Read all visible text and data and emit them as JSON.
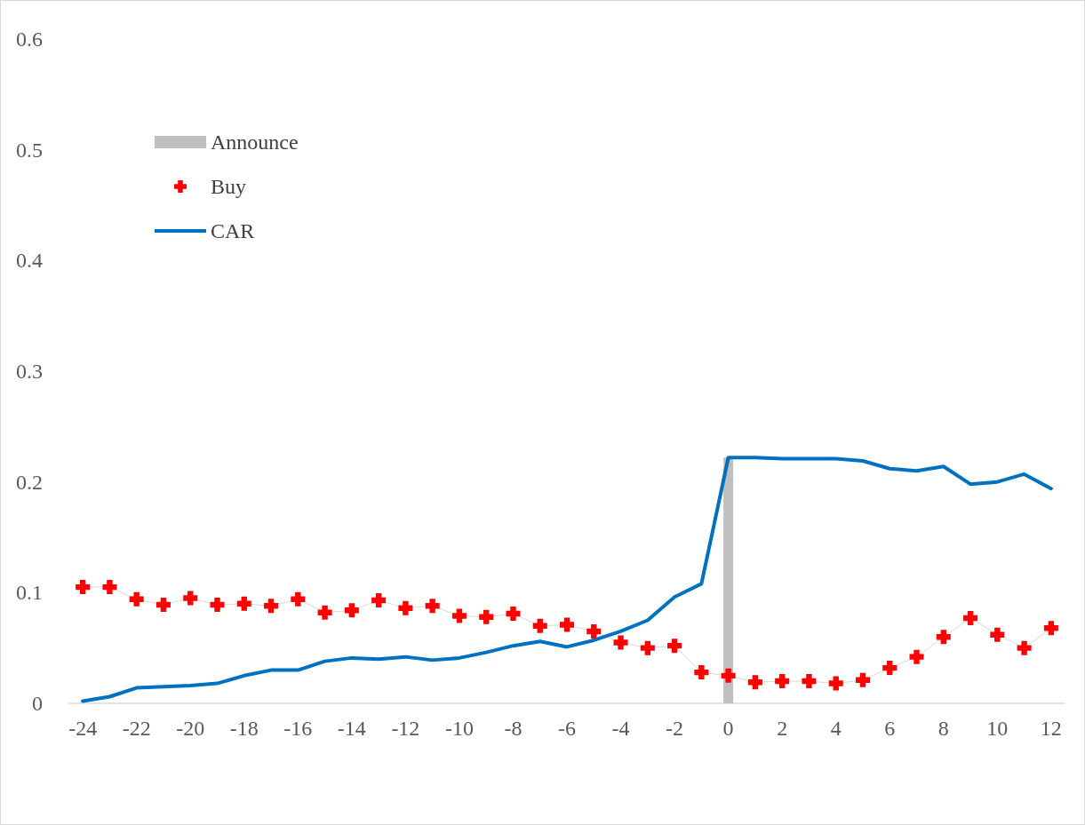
{
  "chart_data": {
    "type": "line",
    "categories": [
      "-24",
      null,
      "-22",
      null,
      "-20",
      null,
      "-18",
      null,
      "-16",
      null,
      "-14",
      null,
      "-12",
      null,
      "-10",
      null,
      "-8",
      null,
      "-6",
      null,
      "-4",
      null,
      "-2",
      null,
      "0",
      null,
      "2",
      null,
      "4",
      null,
      "6",
      null,
      "8",
      null,
      "10",
      null,
      "12"
    ],
    "series": [
      {
        "name": "Announce",
        "type": "bar",
        "color": "#bfbfbf",
        "values": [
          null,
          null,
          null,
          null,
          null,
          null,
          null,
          null,
          null,
          null,
          null,
          null,
          null,
          null,
          null,
          null,
          null,
          null,
          null,
          null,
          null,
          null,
          null,
          null,
          0.222,
          null,
          null,
          null,
          null,
          null,
          null,
          null,
          null,
          null,
          null,
          null,
          null
        ]
      },
      {
        "name": "Buy",
        "marker": "cross",
        "color": "#ff0000",
        "values": [
          0.105,
          0.105,
          0.094,
          0.089,
          0.095,
          0.089,
          0.09,
          0.088,
          0.094,
          0.082,
          0.084,
          0.093,
          0.086,
          0.088,
          0.079,
          0.078,
          0.081,
          0.07,
          0.071,
          0.065,
          0.055,
          0.05,
          0.052,
          0.028,
          0.025,
          0.019,
          0.02,
          0.02,
          0.018,
          0.021,
          0.032,
          0.042,
          0.06,
          0.077,
          0.062,
          0.05,
          0.068
        ]
      },
      {
        "name": "CAR",
        "marker": "none",
        "color": "#0070c0",
        "values": [
          0.002,
          0.006,
          0.014,
          0.015,
          0.016,
          0.018,
          0.025,
          0.03,
          0.03,
          0.038,
          0.041,
          0.04,
          0.042,
          0.039,
          0.041,
          0.046,
          0.052,
          0.056,
          0.051,
          0.057,
          0.065,
          0.075,
          0.096,
          0.108,
          0.222,
          0.222,
          0.221,
          0.221,
          0.221,
          0.219,
          0.212,
          0.21,
          0.214,
          0.198,
          0.2,
          0.207,
          0.194
        ]
      }
    ],
    "ylim": [
      0,
      0.6
    ],
    "yticks": [
      0,
      0.1,
      0.2,
      0.3,
      0.4,
      0.5,
      0.6
    ],
    "grid": false,
    "legend": "top left"
  }
}
